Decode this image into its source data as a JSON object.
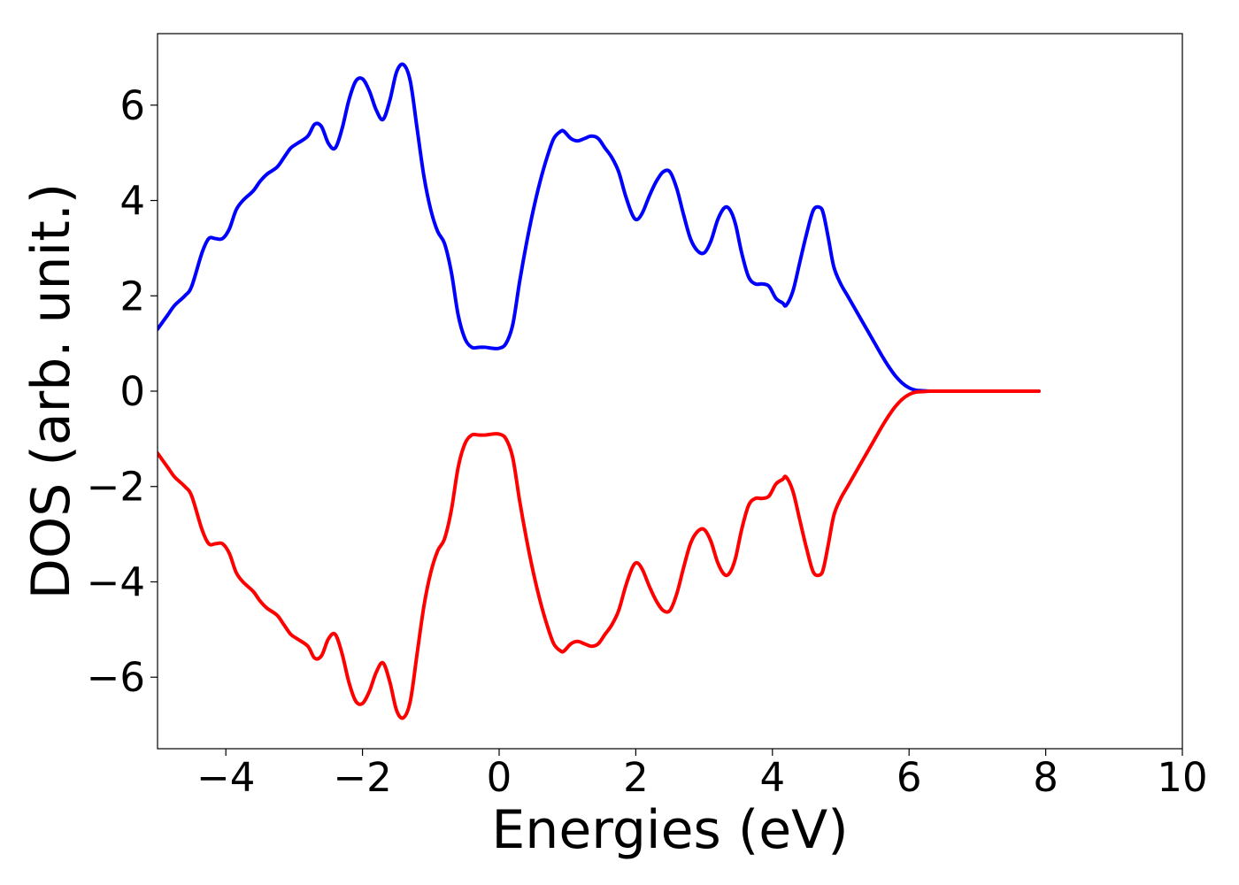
{
  "chart_data": {
    "type": "line",
    "title": "",
    "xlabel": "Energies (eV)",
    "ylabel": "DOS (arb. unit.)",
    "xlim": [
      -5,
      10
    ],
    "ylim": [
      -7.5,
      7.5
    ],
    "xticks": [
      -4,
      -2,
      0,
      2,
      4,
      6,
      8,
      10
    ],
    "xtick_labels": [
      "−4",
      "−2",
      "0",
      "2",
      "4",
      "6",
      "8",
      "10"
    ],
    "yticks": [
      -6,
      -4,
      -2,
      0,
      2,
      4,
      6
    ],
    "ytick_labels": [
      "−6",
      "−4",
      "−2",
      "0",
      "2",
      "4",
      "6"
    ],
    "grid": false,
    "legend": "none",
    "series": [
      {
        "color": "#0000ff",
        "x": [
          -5.0,
          -4.85,
          -4.75,
          -4.6,
          -4.5,
          -4.35,
          -4.25,
          -4.15,
          -4.05,
          -3.95,
          -3.85,
          -3.75,
          -3.6,
          -3.5,
          -3.4,
          -3.25,
          -3.15,
          -3.05,
          -2.95,
          -2.8,
          -2.7,
          -2.6,
          -2.5,
          -2.4,
          -2.3,
          -2.2,
          -2.1,
          -2.0,
          -1.9,
          -1.8,
          -1.7,
          -1.6,
          -1.5,
          -1.4,
          -1.3,
          -1.2,
          -1.1,
          -1.0,
          -0.9,
          -0.8,
          -0.7,
          -0.6,
          -0.5,
          -0.4,
          -0.3,
          -0.2,
          -0.1,
          0.0,
          0.1,
          0.2,
          0.3,
          0.4,
          0.5,
          0.6,
          0.7,
          0.8,
          0.9,
          0.95,
          1.05,
          1.15,
          1.25,
          1.35,
          1.45,
          1.55,
          1.65,
          1.75,
          1.85,
          1.95,
          2.02,
          2.1,
          2.2,
          2.3,
          2.4,
          2.5,
          2.6,
          2.7,
          2.8,
          2.9,
          3.0,
          3.1,
          3.2,
          3.3,
          3.38,
          3.46,
          3.55,
          3.65,
          3.75,
          3.85,
          3.95,
          4.05,
          4.15,
          4.2,
          4.3,
          4.4,
          4.5,
          4.6,
          4.7,
          4.75,
          4.82,
          4.9,
          5.0,
          5.1,
          5.2,
          5.3,
          5.4,
          5.5,
          5.6,
          5.7,
          5.8,
          5.9,
          6.0,
          6.1,
          6.2,
          6.3,
          6.5,
          7.0,
          7.5,
          7.9
        ],
        "y": [
          1.3,
          1.6,
          1.8,
          2.0,
          2.2,
          2.9,
          3.2,
          3.2,
          3.2,
          3.4,
          3.8,
          4.0,
          4.2,
          4.4,
          4.55,
          4.7,
          4.9,
          5.1,
          5.2,
          5.35,
          5.6,
          5.55,
          5.2,
          5.1,
          5.5,
          6.1,
          6.5,
          6.55,
          6.3,
          5.9,
          5.7,
          6.1,
          6.7,
          6.85,
          6.5,
          5.5,
          4.5,
          3.8,
          3.35,
          3.1,
          2.5,
          1.6,
          1.1,
          0.92,
          0.92,
          0.92,
          0.9,
          0.9,
          1.0,
          1.4,
          2.3,
          3.1,
          3.8,
          4.4,
          4.9,
          5.3,
          5.45,
          5.45,
          5.3,
          5.25,
          5.3,
          5.35,
          5.3,
          5.1,
          4.9,
          4.6,
          4.1,
          3.7,
          3.6,
          3.75,
          4.1,
          4.4,
          4.6,
          4.6,
          4.25,
          3.7,
          3.2,
          2.95,
          2.9,
          3.15,
          3.6,
          3.85,
          3.8,
          3.5,
          2.9,
          2.4,
          2.25,
          2.25,
          2.2,
          1.95,
          1.85,
          1.8,
          2.1,
          2.7,
          3.3,
          3.8,
          3.85,
          3.7,
          3.2,
          2.6,
          2.25,
          2.0,
          1.75,
          1.5,
          1.25,
          1.0,
          0.75,
          0.52,
          0.32,
          0.17,
          0.07,
          0.02,
          0.01,
          0.0,
          0.0,
          0.0,
          0.0,
          0.0
        ]
      },
      {
        "color": "#ff0000",
        "x": [
          -5.0,
          -4.85,
          -4.75,
          -4.6,
          -4.5,
          -4.35,
          -4.25,
          -4.15,
          -4.05,
          -3.95,
          -3.85,
          -3.75,
          -3.6,
          -3.5,
          -3.4,
          -3.25,
          -3.15,
          -3.05,
          -2.95,
          -2.8,
          -2.7,
          -2.6,
          -2.5,
          -2.4,
          -2.3,
          -2.2,
          -2.1,
          -2.0,
          -1.9,
          -1.8,
          -1.7,
          -1.6,
          -1.5,
          -1.4,
          -1.3,
          -1.2,
          -1.1,
          -1.0,
          -0.9,
          -0.8,
          -0.7,
          -0.6,
          -0.5,
          -0.4,
          -0.3,
          -0.2,
          -0.1,
          0.0,
          0.1,
          0.2,
          0.3,
          0.4,
          0.5,
          0.6,
          0.7,
          0.8,
          0.9,
          0.95,
          1.05,
          1.15,
          1.25,
          1.35,
          1.45,
          1.55,
          1.65,
          1.75,
          1.85,
          1.95,
          2.02,
          2.1,
          2.2,
          2.3,
          2.4,
          2.5,
          2.6,
          2.7,
          2.8,
          2.9,
          3.0,
          3.1,
          3.2,
          3.3,
          3.38,
          3.46,
          3.55,
          3.65,
          3.75,
          3.85,
          3.95,
          4.05,
          4.15,
          4.2,
          4.3,
          4.4,
          4.5,
          4.6,
          4.7,
          4.75,
          4.82,
          4.9,
          5.0,
          5.1,
          5.2,
          5.3,
          5.4,
          5.5,
          5.6,
          5.7,
          5.8,
          5.9,
          6.0,
          6.1,
          6.2,
          6.3,
          6.5,
          7.0,
          7.5,
          7.9
        ],
        "y": [
          -1.3,
          -1.6,
          -1.8,
          -2.0,
          -2.2,
          -2.9,
          -3.2,
          -3.2,
          -3.2,
          -3.4,
          -3.8,
          -4.0,
          -4.2,
          -4.4,
          -4.55,
          -4.7,
          -4.9,
          -5.1,
          -5.2,
          -5.35,
          -5.6,
          -5.55,
          -5.2,
          -5.1,
          -5.5,
          -6.1,
          -6.5,
          -6.55,
          -6.3,
          -5.9,
          -5.7,
          -6.1,
          -6.7,
          -6.85,
          -6.5,
          -5.5,
          -4.5,
          -3.8,
          -3.35,
          -3.1,
          -2.5,
          -1.6,
          -1.1,
          -0.92,
          -0.92,
          -0.92,
          -0.9,
          -0.9,
          -1.0,
          -1.4,
          -2.3,
          -3.1,
          -3.8,
          -4.4,
          -4.9,
          -5.3,
          -5.45,
          -5.45,
          -5.3,
          -5.25,
          -5.3,
          -5.35,
          -5.3,
          -5.1,
          -4.9,
          -4.6,
          -4.1,
          -3.7,
          -3.6,
          -3.75,
          -4.1,
          -4.4,
          -4.6,
          -4.6,
          -4.25,
          -3.7,
          -3.2,
          -2.95,
          -2.9,
          -3.15,
          -3.6,
          -3.85,
          -3.8,
          -3.5,
          -2.9,
          -2.4,
          -2.25,
          -2.25,
          -2.2,
          -1.95,
          -1.85,
          -1.8,
          -2.1,
          -2.7,
          -3.3,
          -3.8,
          -3.85,
          -3.7,
          -3.2,
          -2.6,
          -2.25,
          -2.0,
          -1.75,
          -1.5,
          -1.25,
          -1.0,
          -0.75,
          -0.52,
          -0.32,
          -0.17,
          -0.07,
          -0.02,
          -0.01,
          0.0,
          0.0,
          0.0,
          0.0,
          0.0
        ]
      }
    ]
  }
}
